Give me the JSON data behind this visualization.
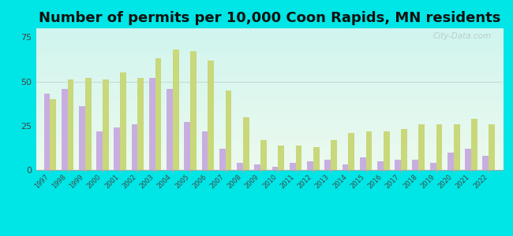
{
  "title": "Number of permits per 10,000 Coon Rapids, MN residents",
  "years": [
    1997,
    1998,
    1999,
    2000,
    2001,
    2002,
    2003,
    2004,
    2005,
    2006,
    2007,
    2008,
    2009,
    2010,
    2011,
    2012,
    2013,
    2014,
    2015,
    2016,
    2017,
    2018,
    2019,
    2020,
    2021,
    2022
  ],
  "coon_rapids": [
    43,
    46,
    36,
    22,
    24,
    26,
    52,
    46,
    27,
    22,
    12,
    4,
    3,
    2,
    4,
    5,
    6,
    3,
    7,
    5,
    6,
    6,
    4,
    10,
    12,
    8
  ],
  "mn_average": [
    40,
    51,
    52,
    51,
    55,
    52,
    63,
    68,
    67,
    62,
    45,
    30,
    17,
    14,
    14,
    13,
    17,
    21,
    22,
    22,
    23,
    26,
    26,
    26,
    29,
    26
  ],
  "coon_rapids_color": "#c8aee0",
  "mn_average_color": "#c8d87a",
  "outer_background": "#00e5e5",
  "bg_top_color": "#edfaee",
  "bg_bottom_color": "#d0f5ef",
  "ylim": [
    0,
    80
  ],
  "yticks": [
    0,
    25,
    50,
    75
  ],
  "title_fontsize": 13,
  "bar_width": 0.35,
  "watermark": "City-Data.com"
}
